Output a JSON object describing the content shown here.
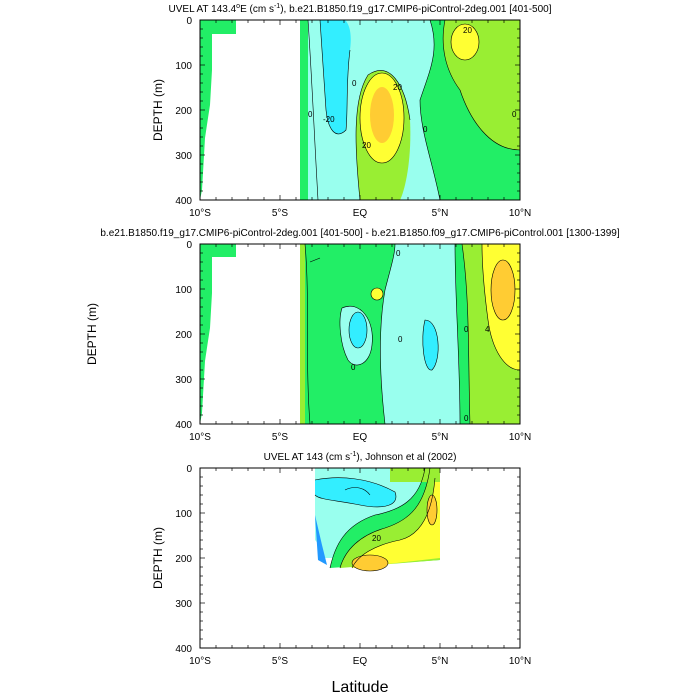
{
  "x_label": "Latitude",
  "colors": {
    "green": "#22ee66",
    "lightgreen": "#99ee33",
    "cyan": "#33eeff",
    "lightcyan": "#99ffee",
    "yellow": "#ffff33",
    "gold": "#ffcc33",
    "blue": "#2299ff"
  },
  "chart_data": [
    {
      "type": "heatmap",
      "title_main": "UVEL AT 143.4",
      "title_sup": "o",
      "title_mid": "E (cm s",
      "title_unit_sup": "-1",
      "title_end": "), b.e21.B1850.f19_g17.CMIP6-piControl-2deg.001 [401-500]",
      "ylabel": "DEPTH (m)",
      "x_range": [
        -10,
        10
      ],
      "y_range": [
        0,
        400
      ],
      "y_ticks": [
        "0",
        "100",
        "200",
        "300",
        "400"
      ],
      "x_ticks": [
        "10°S",
        "5°S",
        "EQ",
        "5°N",
        "10°N"
      ],
      "regions": [
        {
          "label": "background",
          "color": "lightcyan"
        },
        {
          "label": "westward jet",
          "color": "cyan"
        },
        {
          "label": "eastward core",
          "color": "gold"
        },
        {
          "label": "northern band",
          "color": "lightgreen"
        }
      ],
      "contour_labels": [
        "-20",
        "20",
        "0",
        "20",
        "-20",
        "20",
        "0",
        "0",
        "0"
      ]
    },
    {
      "type": "heatmap",
      "title": "b.e21.B1850.f19_g17.CMIP6-piControl-2deg.001 [401-500] - b.e21.B1850.f09_g17.CMIP6-piControl.001 [1300-1399]",
      "ylabel": "DEPTH (m)",
      "x_range": [
        -10,
        10
      ],
      "y_range": [
        0,
        400
      ],
      "y_ticks": [
        "0",
        "100",
        "200",
        "300",
        "400"
      ],
      "x_ticks": [
        "10°S",
        "5°S",
        "EQ",
        "5°N",
        "10°N"
      ],
      "regions": [
        {
          "label": "background",
          "color": "green"
        },
        {
          "label": "central band",
          "color": "lightcyan"
        },
        {
          "label": "northern maximum",
          "color": "yellow"
        }
      ],
      "contour_labels": [
        "0",
        "0",
        "0",
        "0",
        "4",
        "0"
      ]
    },
    {
      "type": "heatmap",
      "title_main": "UVEL AT 143 (cm s",
      "title_unit_sup": "-1",
      "title_end": "), Johnson et al (2002)",
      "ylabel": "DEPTH (m)",
      "x_range": [
        -10,
        10
      ],
      "y_range": [
        0,
        400
      ],
      "y_ticks": [
        "0",
        "100",
        "200",
        "300",
        "400"
      ],
      "x_ticks": [
        "10°S",
        "5°S",
        "EQ",
        "5°N",
        "10°N"
      ],
      "data_lat_range": [
        -2.8,
        5
      ],
      "data_depth_range": [
        0,
        215
      ],
      "regions": [
        {
          "label": "surface westward",
          "color": "cyan"
        },
        {
          "label": "undercurrent",
          "color": "gold"
        },
        {
          "label": "northern band",
          "color": "yellow"
        }
      ],
      "contour_labels": [
        "20"
      ]
    }
  ]
}
